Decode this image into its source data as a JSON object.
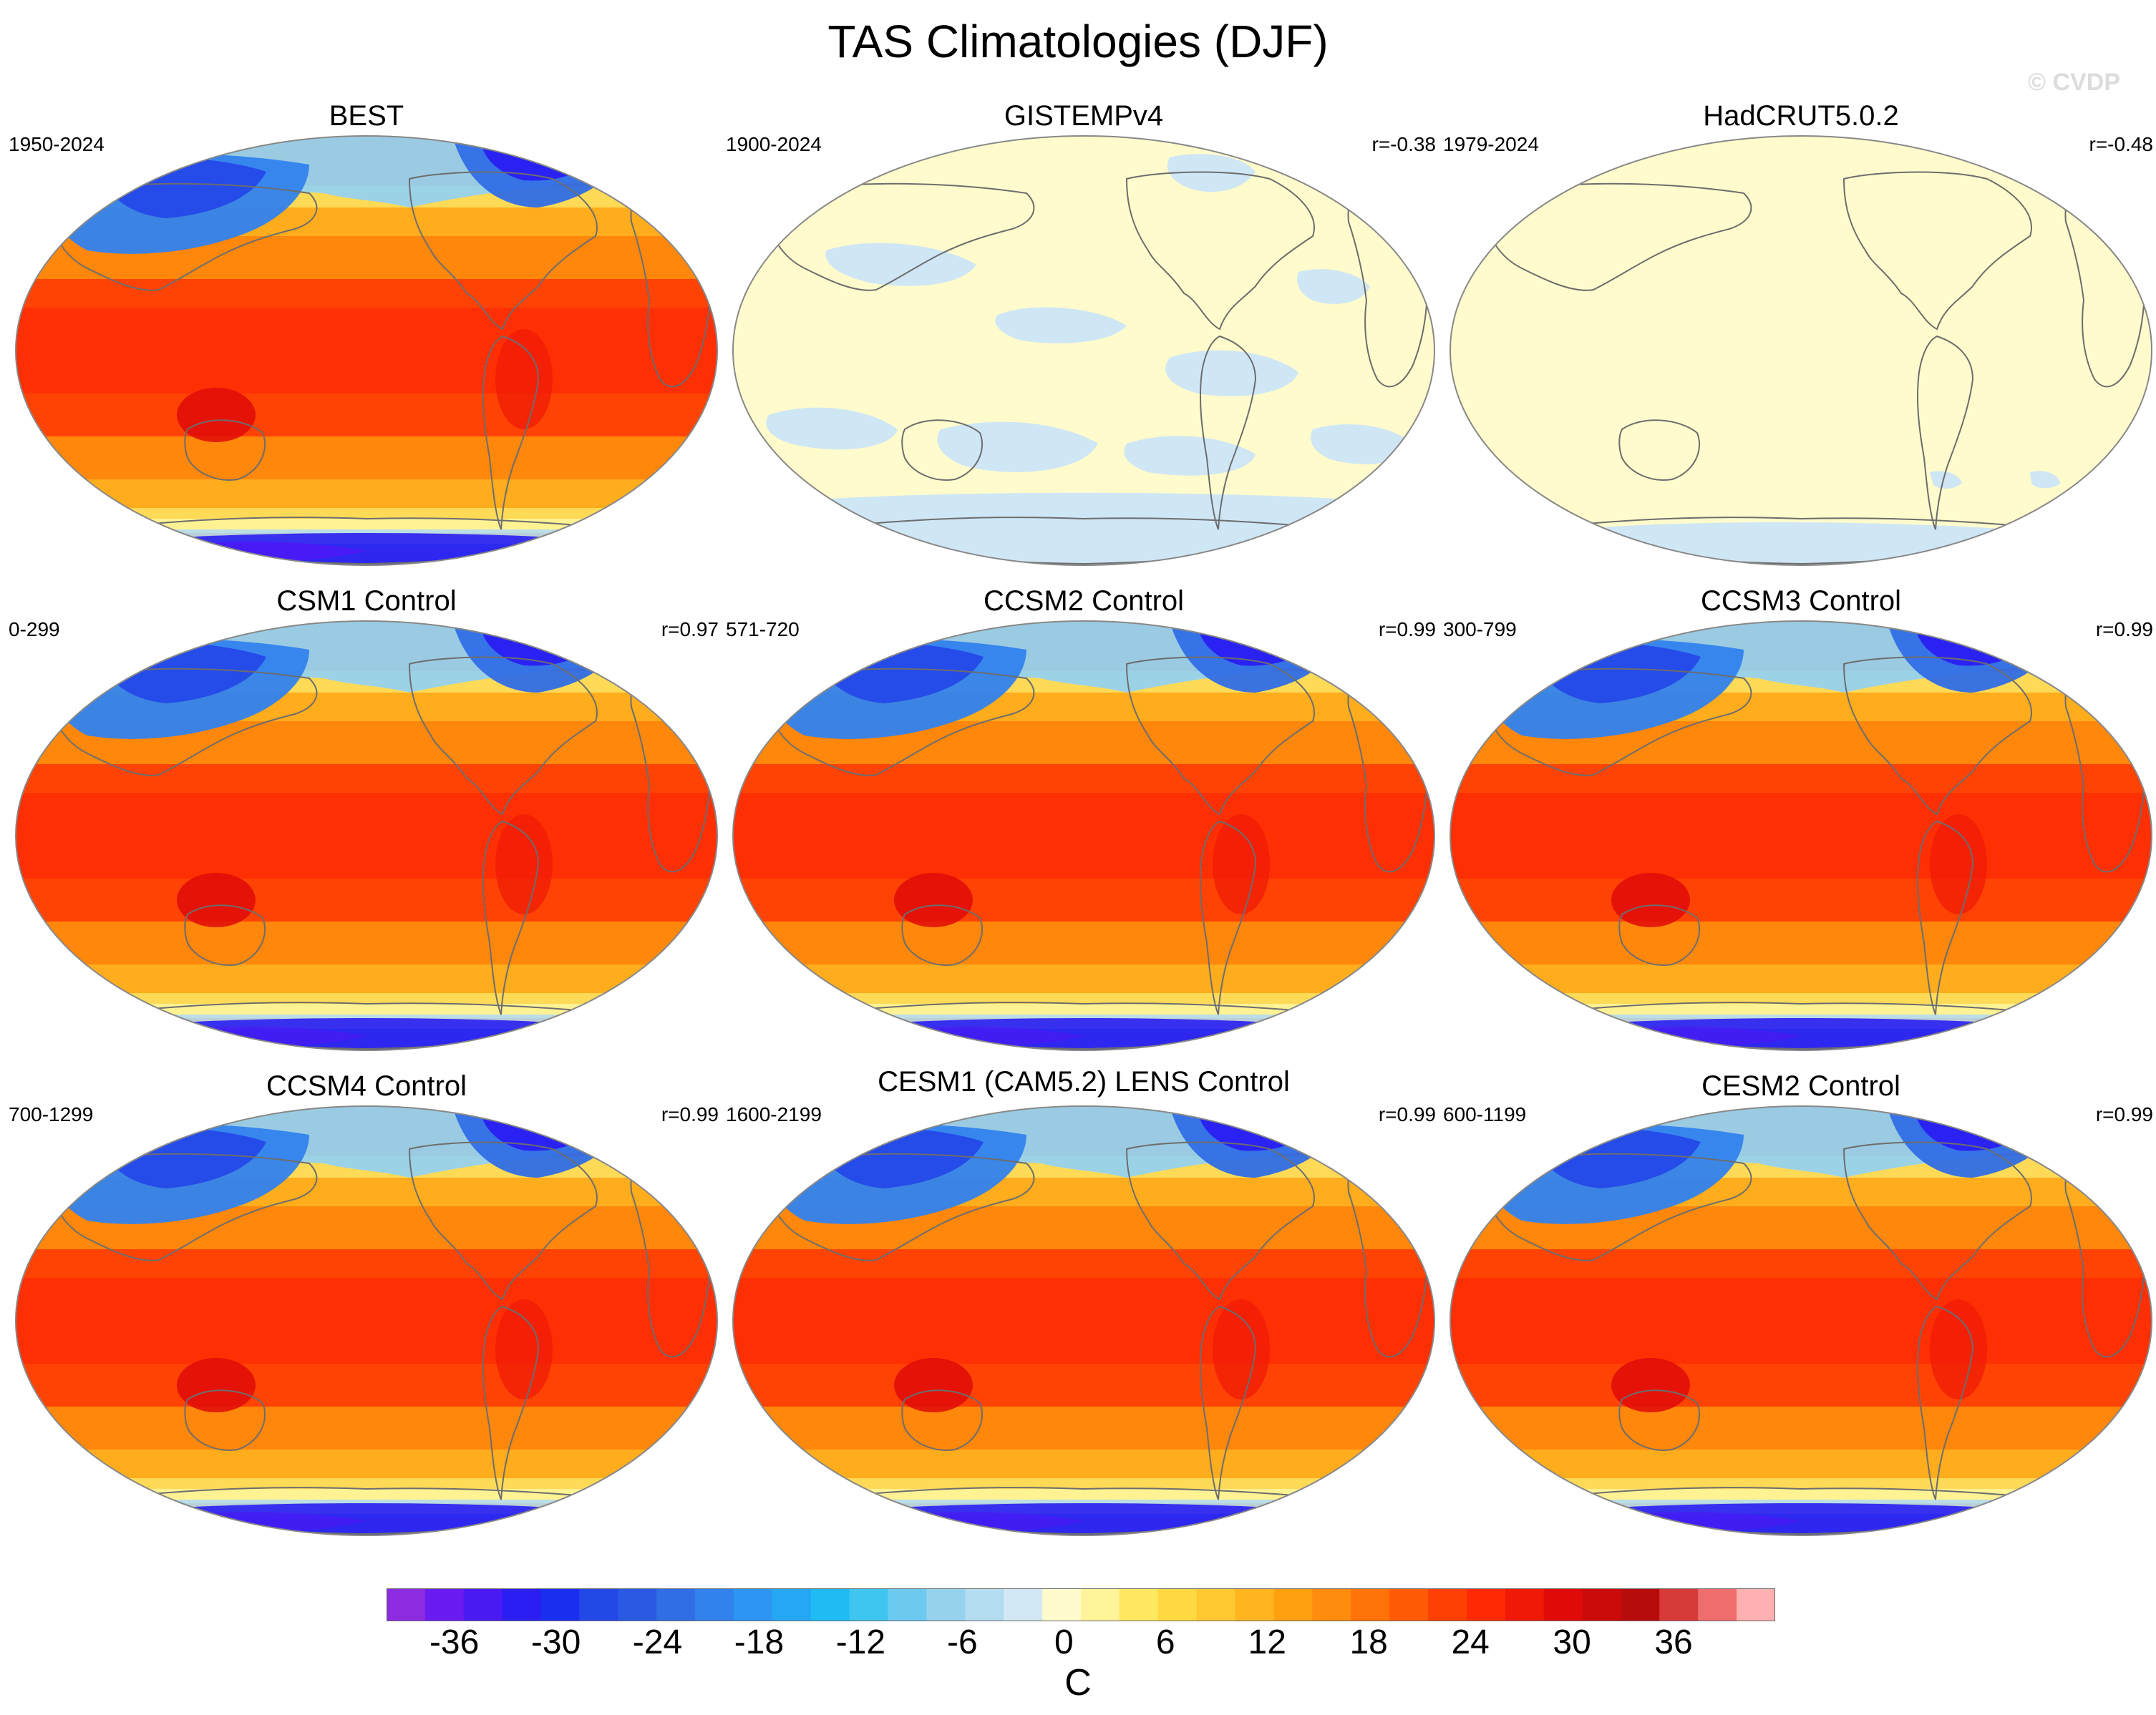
{
  "title": "TAS Climatologies (DJF)",
  "watermark": "© CVDP",
  "chart_data": {
    "type": "heatmap",
    "title": "TAS Climatologies (DJF)",
    "projection": "global map (Robinson-like)",
    "colorbar": {
      "unit": "C",
      "ticks": [
        "-36",
        "-30",
        "-24",
        "-18",
        "-12",
        "-6",
        "0",
        "6",
        "12",
        "18",
        "24",
        "30",
        "36"
      ],
      "tick_values": [
        -36,
        -30,
        -24,
        -18,
        -12,
        -6,
        0,
        6,
        12,
        18,
        24,
        30,
        36
      ],
      "range": [
        -40,
        42
      ],
      "colors": [
        "#8d2be0",
        "#6a1bf0",
        "#4a1af5",
        "#2a1ef2",
        "#1a2ef0",
        "#2448e8",
        "#2a5ae4",
        "#306ee6",
        "#3282ee",
        "#2c96f2",
        "#24a8f4",
        "#1ebcf2",
        "#3ec6f0",
        "#6ccaf0",
        "#96d2ee",
        "#b4dcf0",
        "#d2e8f4",
        "#fffbcc",
        "#fff49a",
        "#ffe860",
        "#ffd940",
        "#ffc830",
        "#ffb520",
        "#ffa010",
        "#ff8c0c",
        "#ff7208",
        "#ff5a06",
        "#ff4004",
        "#ff2a04",
        "#f01806",
        "#e00a08",
        "#cc0a0a",
        "#b80c0c",
        "#d83a3a",
        "#ee6e6e",
        "#ffb0b0"
      ]
    },
    "panels": [
      {
        "title": "BEST",
        "period": "1950-2024",
        "corr": "",
        "field": "obs"
      },
      {
        "title": "GISTEMPv4",
        "period": "1900-2024",
        "corr": "r=-0.38",
        "field": "flat_gis"
      },
      {
        "title": "HadCRUT5.0.2",
        "period": "1979-2024",
        "corr": "r=-0.48",
        "field": "flat_had"
      },
      {
        "title": "CSM1 Control",
        "period": "0-299",
        "corr": "r=0.97",
        "field": "model"
      },
      {
        "title": "CCSM2 Control",
        "period": "571-720",
        "corr": "r=0.99",
        "field": "model"
      },
      {
        "title": "CCSM3 Control",
        "period": "300-799",
        "corr": "r=0.99",
        "field": "model"
      },
      {
        "title": "CCSM4 Control",
        "period": "700-1299",
        "corr": "r=0.99",
        "field": "model"
      },
      {
        "title": "CESM1 (CAM5.2) LENS Control",
        "period": "1600-2199",
        "corr": "r=0.99",
        "field": "model"
      },
      {
        "title": "CESM2 Control",
        "period": "600-1199",
        "corr": "r=0.99",
        "field": "model"
      }
    ]
  }
}
